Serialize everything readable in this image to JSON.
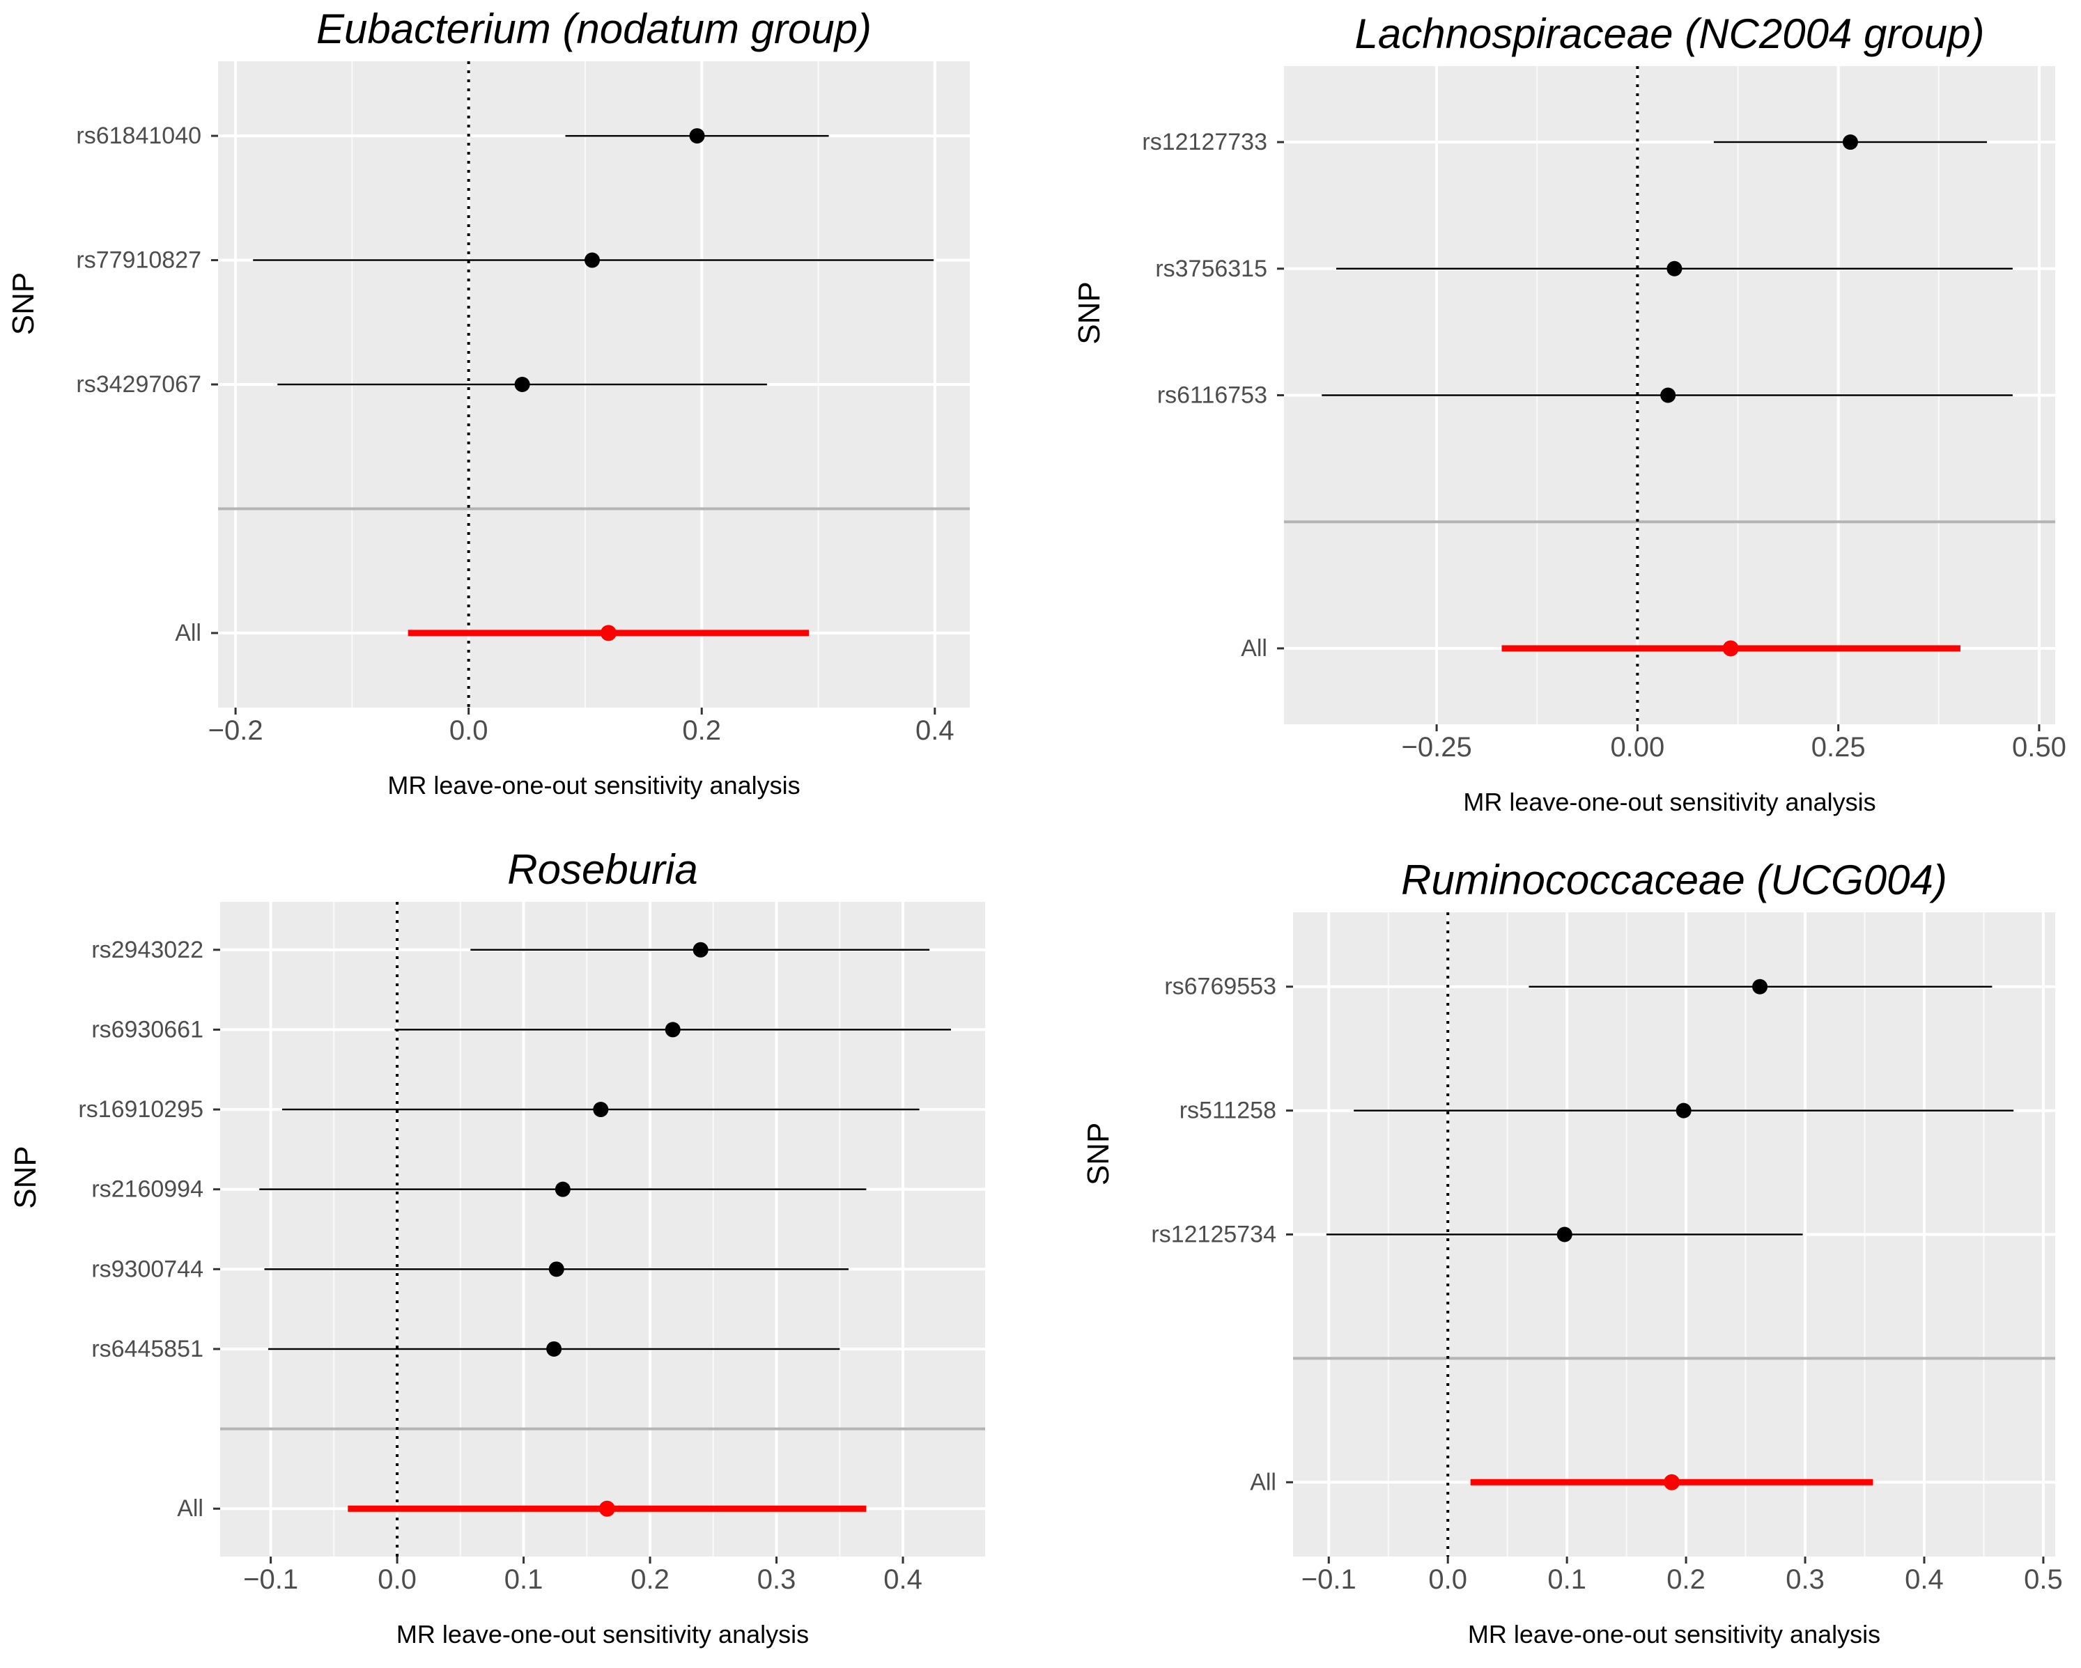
{
  "colors": {
    "panel_bg": "#ebebeb",
    "grid": "#ffffff",
    "separator": "#b4b4b4",
    "point": "#000000",
    "overall": "#ff0000",
    "text": "#000000",
    "tick_text": "#4d4d4d"
  },
  "chart_data": [
    {
      "type": "forest",
      "title": "Eubacterium (nodatum group)",
      "xlabel": "MR leave-one-out sensitivity analysis",
      "ylabel": "SNP",
      "xlim": [
        -0.215,
        0.43
      ],
      "xticks": [
        -0.2,
        0.0,
        0.2,
        0.4
      ],
      "xtick_labels": [
        "−0.2",
        "0.0",
        "0.2",
        "0.4"
      ],
      "reference_line": 0,
      "grid": true,
      "snps": [
        {
          "label": "rs61841040",
          "estimate": 0.196,
          "lower": 0.083,
          "upper": 0.309
        },
        {
          "label": "rs77910827",
          "estimate": 0.106,
          "lower": -0.185,
          "upper": 0.399
        },
        {
          "label": "rs34297067",
          "estimate": 0.046,
          "lower": -0.164,
          "upper": 0.256
        }
      ],
      "overall": {
        "label": "All",
        "estimate": 0.12,
        "lower": -0.052,
        "upper": 0.292
      }
    },
    {
      "type": "forest",
      "title": "Lachnospiraceae (NC2004 group)",
      "xlabel": "MR leave-one-out sensitivity analysis",
      "ylabel": "SNP",
      "xlim": [
        -0.44,
        0.52
      ],
      "xticks": [
        -0.25,
        0.0,
        0.25,
        0.5
      ],
      "xtick_labels": [
        "−0.25",
        "0.00",
        "0.25",
        "0.50"
      ],
      "reference_line": 0,
      "grid": true,
      "snps": [
        {
          "label": "rs12127733",
          "estimate": 0.265,
          "lower": 0.095,
          "upper": 0.435
        },
        {
          "label": "rs3756315",
          "estimate": 0.046,
          "lower": -0.375,
          "upper": 0.467
        },
        {
          "label": "rs6116753",
          "estimate": 0.038,
          "lower": -0.393,
          "upper": 0.467
        }
      ],
      "overall": {
        "label": "All",
        "estimate": 0.116,
        "lower": -0.169,
        "upper": 0.402
      }
    },
    {
      "type": "forest",
      "title": "Roseburia",
      "xlabel": "MR leave-one-out sensitivity analysis",
      "ylabel": "SNP",
      "xlim": [
        -0.14,
        0.465
      ],
      "xticks": [
        -0.1,
        0.0,
        0.1,
        0.2,
        0.3,
        0.4
      ],
      "xtick_labels": [
        "−0.1",
        "0.0",
        "0.1",
        "0.2",
        "0.3",
        "0.4"
      ],
      "reference_line": 0,
      "grid": true,
      "snps": [
        {
          "label": "rs2943022",
          "estimate": 0.24,
          "lower": 0.058,
          "upper": 0.421
        },
        {
          "label": "rs6930661",
          "estimate": 0.218,
          "lower": -0.002,
          "upper": 0.438
        },
        {
          "label": "rs16910295",
          "estimate": 0.161,
          "lower": -0.091,
          "upper": 0.413
        },
        {
          "label": "rs2160994",
          "estimate": 0.131,
          "lower": -0.109,
          "upper": 0.371
        },
        {
          "label": "rs9300744",
          "estimate": 0.126,
          "lower": -0.105,
          "upper": 0.357
        },
        {
          "label": "rs6445851",
          "estimate": 0.124,
          "lower": -0.102,
          "upper": 0.35
        }
      ],
      "overall": {
        "label": "All",
        "estimate": 0.166,
        "lower": -0.039,
        "upper": 0.371
      }
    },
    {
      "type": "forest",
      "title": "Ruminococcaceae (UCG004)",
      "xlabel": "MR leave-one-out sensitivity analysis",
      "ylabel": "SNP",
      "xlim": [
        -0.13,
        0.51
      ],
      "xticks": [
        -0.1,
        0.0,
        0.1,
        0.2,
        0.3,
        0.4,
        0.5
      ],
      "xtick_labels": [
        "−0.1",
        "0.0",
        "0.1",
        "0.2",
        "0.3",
        "0.4",
        "0.5"
      ],
      "reference_line": 0,
      "grid": true,
      "snps": [
        {
          "label": "rs6769553",
          "estimate": 0.262,
          "lower": 0.068,
          "upper": 0.457
        },
        {
          "label": "rs511258",
          "estimate": 0.198,
          "lower": -0.079,
          "upper": 0.475
        },
        {
          "label": "rs12125734",
          "estimate": 0.098,
          "lower": -0.102,
          "upper": 0.298
        }
      ],
      "overall": {
        "label": "All",
        "estimate": 0.188,
        "lower": 0.019,
        "upper": 0.357
      }
    }
  ]
}
